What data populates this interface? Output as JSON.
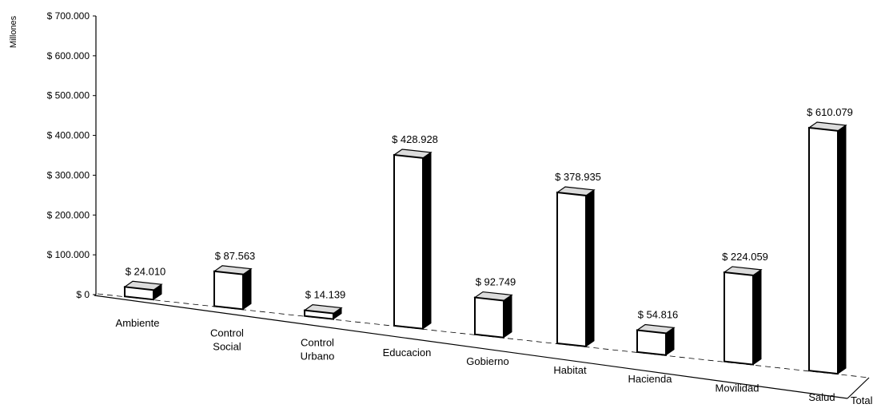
{
  "chart_data": {
    "type": "bar",
    "title": "",
    "xlabel": "",
    "ylabel": "Millones",
    "series_label": "Total",
    "ylim": [
      0,
      700000
    ],
    "yticks": [
      "$ 700.000",
      "$ 600.000",
      "$ 500.000",
      "$ 400.000",
      "$ 300.000",
      "$ 200.000",
      "$ 100.000",
      "$ 0"
    ],
    "categories": [
      [
        "Ambiente"
      ],
      [
        "Control",
        "Social"
      ],
      [
        "Control",
        "Urbano"
      ],
      [
        "Educacion"
      ],
      [
        "Gobierno"
      ],
      [
        "Habitat"
      ],
      [
        "Hacienda"
      ],
      [
        "Movilidad"
      ],
      [
        "Salud"
      ]
    ],
    "values": [
      24010,
      87563,
      14139,
      428928,
      92749,
      378935,
      54816,
      224059,
      610079
    ],
    "data_labels": [
      "$ 24.010",
      "$ 87.563",
      "$ 14.139",
      "$ 428.928",
      "$ 92.749",
      "$ 378.935",
      "$ 54.816",
      "$ 224.059",
      "$ 610.079"
    ],
    "grid": false,
    "legend": "none",
    "style": "3d-bar",
    "colors": {
      "bar_face": "#ffffff",
      "bar_side": "#000000",
      "axis": "#000000"
    }
  }
}
